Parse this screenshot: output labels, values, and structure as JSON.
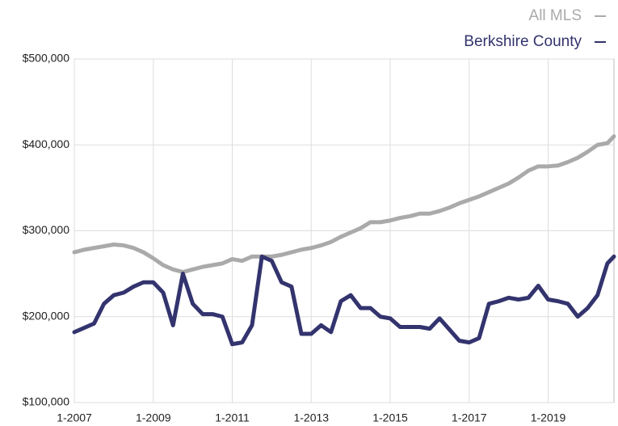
{
  "chart_data": {
    "type": "line",
    "x": [
      "1-2007",
      "4-2007",
      "7-2007",
      "10-2007",
      "1-2008",
      "4-2008",
      "7-2008",
      "10-2008",
      "1-2009",
      "4-2009",
      "7-2009",
      "10-2009",
      "1-2010",
      "4-2010",
      "7-2010",
      "10-2010",
      "1-2011",
      "4-2011",
      "7-2011",
      "10-2011",
      "1-2012",
      "4-2012",
      "7-2012",
      "10-2012",
      "1-2013",
      "4-2013",
      "7-2013",
      "10-2013",
      "1-2014",
      "4-2014",
      "7-2014",
      "10-2014",
      "1-2015",
      "4-2015",
      "7-2015",
      "10-2015",
      "1-2016",
      "4-2016",
      "7-2016",
      "10-2016",
      "1-2017",
      "4-2017",
      "7-2017",
      "10-2017",
      "1-2018",
      "4-2018",
      "7-2018",
      "10-2018",
      "1-2019",
      "4-2019",
      "7-2019",
      "10-2019",
      "1-2020",
      "4-2020",
      "7-2020",
      "9-2020"
    ],
    "series": [
      {
        "name": "All MLS",
        "color": "#aaaaaa",
        "values": [
          275000,
          278000,
          280000,
          282000,
          284000,
          283000,
          280000,
          275000,
          268000,
          260000,
          255000,
          252000,
          255000,
          258000,
          260000,
          262000,
          267000,
          265000,
          270000,
          270000,
          270000,
          272000,
          275000,
          278000,
          280000,
          283000,
          287000,
          293000,
          298000,
          303000,
          310000,
          310000,
          312000,
          315000,
          317000,
          320000,
          320000,
          323000,
          327000,
          332000,
          336000,
          340000,
          345000,
          350000,
          355000,
          362000,
          370000,
          375000,
          375000,
          376000,
          380000,
          385000,
          392000,
          400000,
          402000,
          410000
        ]
      },
      {
        "name": "Berkshire County",
        "color": "#33336e",
        "values": [
          182000,
          187000,
          192000,
          215000,
          225000,
          228000,
          235000,
          240000,
          240000,
          228000,
          190000,
          250000,
          215000,
          203000,
          203000,
          200000,
          168000,
          170000,
          190000,
          270000,
          265000,
          240000,
          235000,
          180000,
          180000,
          190000,
          182000,
          218000,
          225000,
          210000,
          210000,
          200000,
          198000,
          188000,
          188000,
          188000,
          186000,
          198000,
          185000,
          172000,
          170000,
          175000,
          215000,
          218000,
          222000,
          220000,
          222000,
          236000,
          220000,
          218000,
          215000,
          200000,
          210000,
          225000,
          262000,
          270000
        ]
      }
    ],
    "xlim": [
      "1-2007",
      "9-2020"
    ],
    "xticks": [
      "1-2007",
      "1-2009",
      "1-2011",
      "1-2013",
      "1-2015",
      "1-2017",
      "1-2019"
    ],
    "ylim": [
      100000,
      500000
    ],
    "yticks": [
      {
        "value": 100000,
        "label": "$100,000"
      },
      {
        "value": 200000,
        "label": "$200,000"
      },
      {
        "value": 300000,
        "label": "$300,000"
      },
      {
        "value": 400000,
        "label": "$400,000"
      },
      {
        "value": 500000,
        "label": "$500,000"
      }
    ],
    "grid": true,
    "legend": "top-right"
  }
}
